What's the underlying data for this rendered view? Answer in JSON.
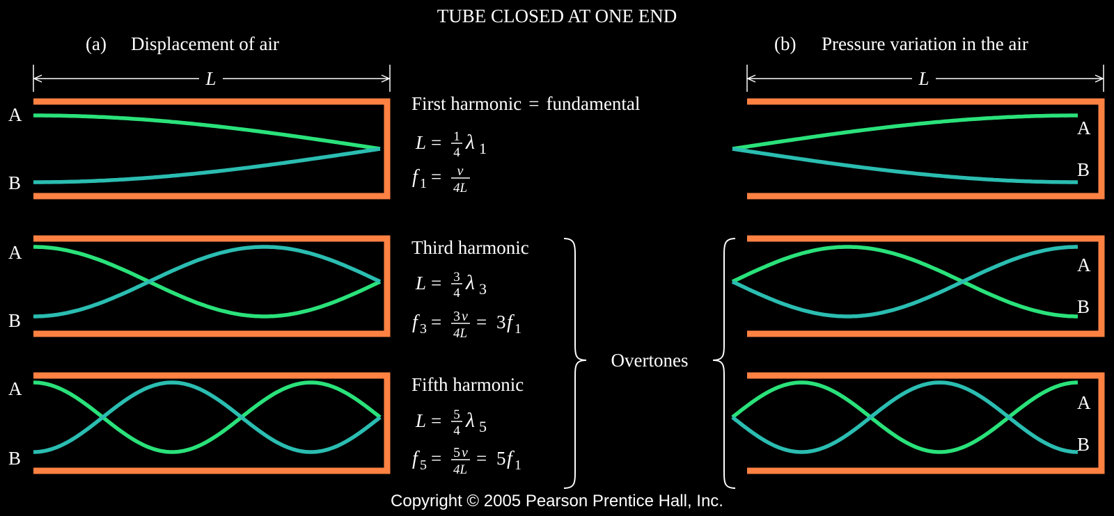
{
  "title": "TUBE CLOSED AT ONE END",
  "panel_a": {
    "letter": "(a)",
    "label": "Displacement of air",
    "length_label": "L"
  },
  "panel_b": {
    "letter": "(b)",
    "label": "Pressure variation in the air",
    "length_label": "L"
  },
  "curve_labels": {
    "upper": "A",
    "lower": "B"
  },
  "harmonics": [
    {
      "name": "First harmonic",
      "eq": "=",
      "note": "fundamental",
      "length_lhs": "L",
      "frac_num": "1",
      "frac_den": "4",
      "lambda": "λ",
      "lambda_sub": "1",
      "freq_f": "f",
      "freq_sub": "1",
      "freq_num_coef": "",
      "freq_num_var": "v",
      "freq_den": "4L",
      "freq_rhs_coef": "",
      "freq_rhs_f": "",
      "freq_rhs_sub": ""
    },
    {
      "name": "Third harmonic",
      "length_lhs": "L",
      "frac_num": "3",
      "frac_den": "4",
      "lambda": "λ",
      "lambda_sub": "3",
      "freq_f": "f",
      "freq_sub": "3",
      "freq_num_coef": "3",
      "freq_num_var": "v",
      "freq_den": "4L",
      "freq_rhs_coef": "3",
      "freq_rhs_f": "f",
      "freq_rhs_sub": "1"
    },
    {
      "name": "Fifth harmonic",
      "length_lhs": "L",
      "frac_num": "5",
      "frac_den": "4",
      "lambda": "λ",
      "lambda_sub": "5",
      "freq_f": "f",
      "freq_sub": "5",
      "freq_num_coef": "5",
      "freq_num_var": "v",
      "freq_den": "4L",
      "freq_rhs_coef": "5",
      "freq_rhs_f": "f",
      "freq_rhs_sub": "1"
    }
  ],
  "overtones_label": "Overtones",
  "copyright": "Copyright © 2005 Pearson Prentice Hall, Inc.",
  "colors": {
    "tube": "#ff8243",
    "curve_a": "#2ae27a",
    "curve_b": "#2bbdb1",
    "background": "#000000",
    "text": "#ffffff"
  }
}
